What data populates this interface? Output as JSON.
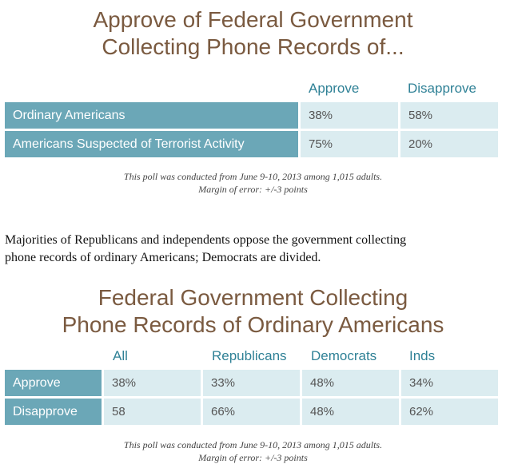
{
  "table1": {
    "title_line1": "Approve of Federal Government",
    "title_line2": "Collecting Phone Records of...",
    "headers": [
      "Approve",
      "Disapprove"
    ],
    "rows": [
      {
        "label": "Ordinary Americans",
        "approve": "38%",
        "disapprove": "58%"
      },
      {
        "label": "Americans Suspected of Terrorist Activity",
        "approve": "75%",
        "disapprove": "20%"
      }
    ],
    "note_line1": "This poll was conducted from June 9-10, 2013 among 1,015 adults.",
    "note_line2": "Margin of error: +/-3 points"
  },
  "paragraph": {
    "line1": "Majorities of Republicans and independents oppose the government collecting",
    "line2": "phone records of ordinary Americans; Democrats are divided."
  },
  "table2": {
    "title_line1": "Federal Government Collecting",
    "title_line2": "Phone Records of Ordinary Americans",
    "headers": [
      "All",
      "Republicans",
      "Democrats",
      "Inds"
    ],
    "rows": [
      {
        "label": "Approve",
        "values": [
          "38%",
          "33%",
          "48%",
          "34%"
        ]
      },
      {
        "label": "Disapprove",
        "values": [
          "58",
          "66%",
          "48%",
          "62%"
        ]
      }
    ],
    "note_line1": "This poll was conducted from June 9-10, 2013 among 1,015 adults.",
    "note_line2": "Margin of error: +/-3 points"
  },
  "colors": {
    "title": "#7a5a40",
    "header_text": "#2f8196",
    "label_bg": "#6ba7b7",
    "value_bg": "#dbecf0"
  }
}
